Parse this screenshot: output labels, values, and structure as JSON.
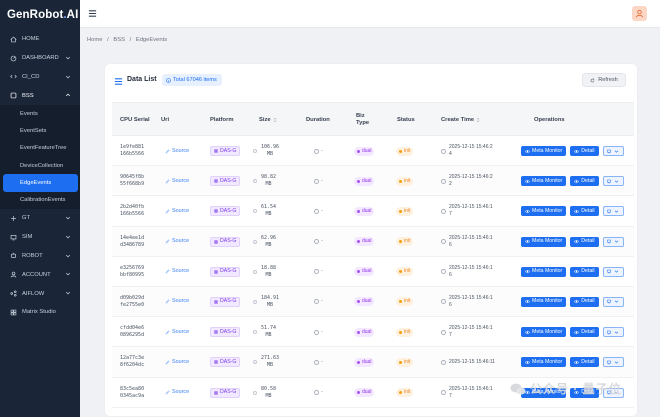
{
  "app": {
    "logo_main": "GenRobot",
    "logo_accent": ".",
    "logo_suffix": "AI"
  },
  "sidebar": {
    "items": [
      {
        "label": "HOME",
        "icon": "home-icon"
      },
      {
        "label": "DASHBOARD",
        "icon": "dashboard-icon",
        "chevron": "down"
      },
      {
        "label": "CI_CD",
        "icon": "cicd-icon",
        "chevron": "down"
      },
      {
        "label": "BSS",
        "icon": "bss-icon",
        "chevron": "up"
      }
    ],
    "bss_children": [
      "Events",
      "EventSets",
      "EventFeatureTree",
      "DeviceCollection",
      "EdgeEvents",
      "CalibrationEvents"
    ],
    "active_child": "EdgeEvents",
    "items_after": [
      {
        "label": "GT",
        "icon": "gt-icon",
        "chevron": "down"
      },
      {
        "label": "SIM",
        "icon": "sim-icon",
        "chevron": "down"
      },
      {
        "label": "ROBOT",
        "icon": "robot-icon",
        "chevron": "down"
      },
      {
        "label": "ACCOUNT",
        "icon": "account-icon",
        "chevron": "down"
      },
      {
        "label": "AIFLOW",
        "icon": "aiflow-icon",
        "chevron": "down"
      },
      {
        "label": "Matrix Studio",
        "icon": "matrix-icon"
      }
    ]
  },
  "breadcrumb": [
    "Home",
    "/",
    "BSS",
    "/",
    "EdgeEvents"
  ],
  "card": {
    "title": "Data List",
    "total_badge": "Total 67046 items",
    "refresh_label": "Refresh"
  },
  "table": {
    "headers": {
      "cpu_serial": "CPU Serial",
      "uri": "Uri",
      "platform": "Platform",
      "size": "Size",
      "duration": "Duration",
      "biz_type": "Biz Type",
      "status": "Status",
      "create_time": "Create Time",
      "operations": "Operations"
    },
    "rows": [
      {
        "cpu1": "1e9fe881",
        "cpu2": "166b5566",
        "uri": "Source",
        "platform": "DAS-G",
        "size1": "106.96",
        "size2": "MB",
        "duration": "-",
        "biz": "dual",
        "status": "init",
        "t1": "2025-12-15 15:46:2",
        "t2": "4"
      },
      {
        "cpu1": "90645f8b",
        "cpu2": "55f668b9",
        "uri": "Source",
        "platform": "DAS-G",
        "size1": "98.82",
        "size2": "MB",
        "duration": "-",
        "biz": "dual",
        "status": "init",
        "t1": "2025-12-15 15:46:2",
        "t2": "2"
      },
      {
        "cpu1": "2b2d40fb",
        "cpu2": "166b5566",
        "uri": "Source",
        "platform": "DAS-G",
        "size1": "61.54",
        "size2": "MB",
        "duration": "-",
        "biz": "dual",
        "status": "init",
        "t1": "2025-12-15 15:46:1",
        "t2": "7"
      },
      {
        "cpu1": "14e4ee1d",
        "cpu2": "d3486789",
        "uri": "Source",
        "platform": "DAS-G",
        "size1": "62.96",
        "size2": "MB",
        "duration": "-",
        "biz": "dual",
        "status": "init",
        "t1": "2025-12-15 15:46:1",
        "t2": "6"
      },
      {
        "cpu1": "e3256769",
        "cpu2": "bbf80995",
        "uri": "Source",
        "platform": "DAS-G",
        "size1": "18.88",
        "size2": "MB",
        "duration": "-",
        "biz": "dual",
        "status": "init",
        "t1": "2025-12-15 15:46:1",
        "t2": "6"
      },
      {
        "cpu1": "d09b029d",
        "cpu2": "fe2755e0",
        "uri": "Source",
        "platform": "DAS-G",
        "size1": "184.91",
        "size2": "MB",
        "duration": "-",
        "biz": "dual",
        "status": "init",
        "t1": "2025-12-15 15:46:1",
        "t2": "6"
      },
      {
        "cpu1": "cfdd04e6",
        "cpu2": "0896295d",
        "uri": "Source",
        "platform": "DAS-G",
        "size1": "51.74",
        "size2": "MB",
        "duration": "-",
        "biz": "dual",
        "status": "init",
        "t1": "2025-12-15 15:46:1",
        "t2": "7"
      },
      {
        "cpu1": "12a77c3e",
        "cpu2": "8f6204dc",
        "uri": "Source",
        "platform": "DAS-G",
        "size1": "271.63",
        "size2": "MB",
        "duration": "-",
        "biz": "dual",
        "status": "init",
        "t1": "2025-12-15 15:46:11",
        "t2": ""
      },
      {
        "cpu1": "83c5ea80",
        "cpu2": "0345ac9a",
        "uri": "Source",
        "platform": "DAS-G",
        "size1": "80.58",
        "size2": "MB",
        "duration": "-",
        "biz": "dual",
        "status": "init",
        "t1": "2025-12-15 15:46:1",
        "t2": "7"
      }
    ],
    "btn_meta": "Meta Monitor",
    "btn_detail": "Detail"
  },
  "watermark": "公众号 · 量子位",
  "colors": {
    "sidebar_bg": "#1a2638",
    "accent": "#1d6ef0",
    "platform_tag": "#7c3aed",
    "biz_tag": "#9333ea",
    "status_tag": "#ea8a2b"
  }
}
